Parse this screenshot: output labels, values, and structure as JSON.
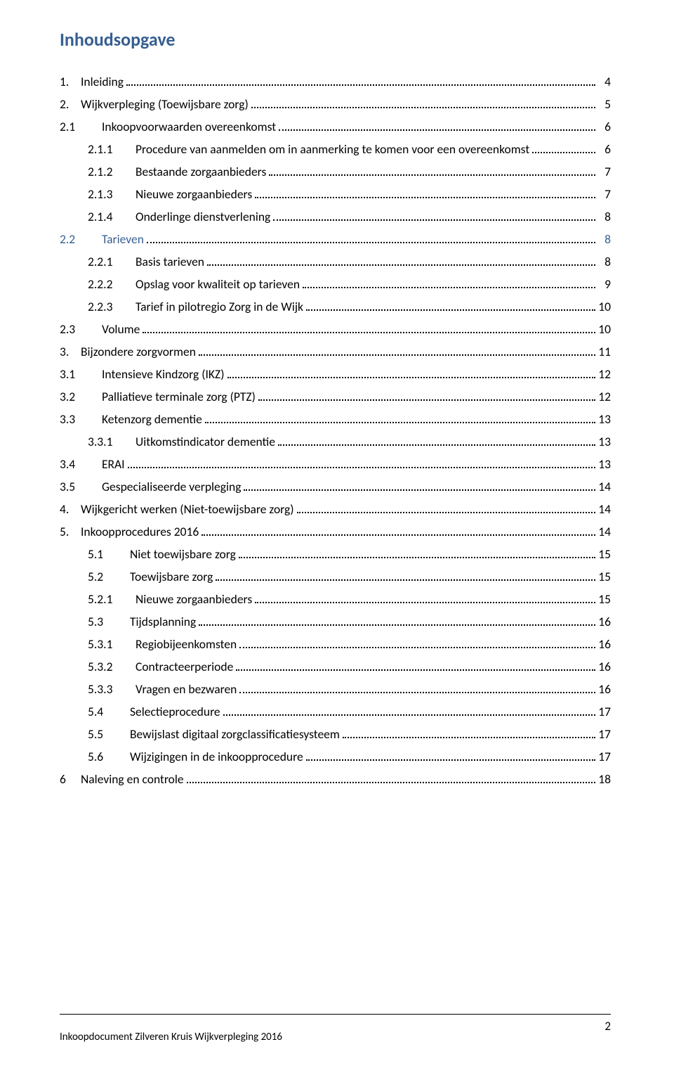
{
  "colors": {
    "heading": "#365f91",
    "text": "#000000",
    "dots": "#000000",
    "background": "#ffffff",
    "rule": "#000000"
  },
  "typography": {
    "base_family": "Calibri",
    "title_size_pt": 20,
    "body_size_pt": 13
  },
  "title": "Inhoudsopgave",
  "toc": [
    {
      "indent": "ind1",
      "num_class": "w0",
      "num": "1.",
      "text": "Inleiding",
      "page": "4",
      "blue": false
    },
    {
      "indent": "ind1",
      "num_class": "w0",
      "num": "2.",
      "text": "Wijkverpleging (Toewijsbare zorg)",
      "page": "5",
      "blue": false
    },
    {
      "indent": "ind2",
      "num_class": "w1",
      "num": "2.1",
      "text": "Inkoopvoorwaarden overeenkomst",
      "page": "6",
      "blue": false
    },
    {
      "indent": "ind3",
      "num_class": "w2",
      "num": "2.1.1",
      "text": "Procedure van aanmelden om in aanmerking te komen voor een overeenkomst",
      "page": "6",
      "blue": false
    },
    {
      "indent": "ind3",
      "num_class": "w2",
      "num": "2.1.2",
      "text": "Bestaande zorgaanbieders",
      "page": "7",
      "blue": false
    },
    {
      "indent": "ind3",
      "num_class": "w2",
      "num": "2.1.3",
      "text": "Nieuwe zorgaanbieders",
      "page": "7",
      "blue": false
    },
    {
      "indent": "ind3",
      "num_class": "w2",
      "num": "2.1.4",
      "text": "Onderlinge dienstverlening",
      "page": "8",
      "blue": false
    },
    {
      "indent": "ind2",
      "num_class": "w1",
      "num": "2.2",
      "text": "Tarieven",
      "page": "8",
      "blue": true
    },
    {
      "indent": "ind3",
      "num_class": "w2",
      "num": "2.2.1",
      "text": "Basis tarieven",
      "page": "8",
      "blue": false
    },
    {
      "indent": "ind3",
      "num_class": "w2",
      "num": "2.2.2",
      "text": "Opslag voor kwaliteit op tarieven",
      "page": "9",
      "blue": false
    },
    {
      "indent": "ind3",
      "num_class": "w2",
      "num": "2.2.3",
      "text": "Tarief in pilotregio Zorg in de Wijk",
      "page": "10",
      "blue": false
    },
    {
      "indent": "ind2",
      "num_class": "w1",
      "num": "2.3",
      "text": "Volume",
      "page": "10",
      "blue": false
    },
    {
      "indent": "ind1",
      "num_class": "w0",
      "num": "3.",
      "text": "Bijzondere zorgvormen",
      "page": "11",
      "blue": false
    },
    {
      "indent": "ind2b",
      "num_class": "w1",
      "num": "3.1",
      "text": "Intensieve Kindzorg (IKZ)",
      "page": "12",
      "blue": false
    },
    {
      "indent": "ind2b",
      "num_class": "w1",
      "num": "3.2",
      "text": "Palliatieve terminale zorg (PTZ)",
      "page": "12",
      "blue": false
    },
    {
      "indent": "ind2b",
      "num_class": "w1",
      "num": "3.3",
      "text": "Ketenzorg dementie",
      "page": "13",
      "blue": false
    },
    {
      "indent": "ind3b",
      "num_class": "w2",
      "num": "3.3.1",
      "text": "Uitkomstindicator dementie",
      "page": "13",
      "blue": false
    },
    {
      "indent": "ind2b",
      "num_class": "w1",
      "num": "3.4",
      "text": "ERAI",
      "page": "13",
      "blue": false
    },
    {
      "indent": "ind2b",
      "num_class": "w1",
      "num": "3.5",
      "text": "Gespecialiseerde verpleging",
      "page": "14",
      "blue": false
    },
    {
      "indent": "ind1",
      "num_class": "w0",
      "num": "4.",
      "text": "Wijkgericht werken (Niet-toewijsbare zorg)",
      "page": "14",
      "blue": false
    },
    {
      "indent": "ind1",
      "num_class": "w0",
      "num": "5.",
      "text": "Inkoopprocedures 2016",
      "page": "14",
      "blue": false
    },
    {
      "indent": "ind2c",
      "num_class": "w1",
      "num": "5.1",
      "text": "Niet toewijsbare zorg",
      "page": "15",
      "blue": false
    },
    {
      "indent": "ind2c",
      "num_class": "w1",
      "num": "5.2",
      "text": "Toewijsbare zorg",
      "page": "15",
      "blue": false
    },
    {
      "indent": "ind3b",
      "num_class": "w2",
      "num": "5.2.1",
      "text": "Nieuwe zorgaanbieders",
      "page": "15",
      "blue": false
    },
    {
      "indent": "ind2c",
      "num_class": "w1",
      "num": "5.3",
      "text": "Tijdsplanning",
      "page": "16",
      "blue": false
    },
    {
      "indent": "ind3b",
      "num_class": "w2",
      "num": "5.3.1",
      "text": "Regiobijeenkomsten",
      "page": "16",
      "blue": false
    },
    {
      "indent": "ind3b",
      "num_class": "w2",
      "num": "5.3.2",
      "text": "Contracteerperiode",
      "page": "16",
      "blue": false
    },
    {
      "indent": "ind3b",
      "num_class": "w2",
      "num": "5.3.3",
      "text": "Vragen en bezwaren",
      "page": "16",
      "blue": false
    },
    {
      "indent": "ind2c",
      "num_class": "w1",
      "num": "5.4",
      "text": "Selectieprocedure",
      "page": "17",
      "blue": false
    },
    {
      "indent": "ind2c",
      "num_class": "w1",
      "num": "5.5",
      "text": "Bewijslast digitaal zorgclassificatiesysteem",
      "page": "17",
      "blue": false
    },
    {
      "indent": "ind2c",
      "num_class": "w1",
      "num": "5.6",
      "text": "Wijzigingen in de inkoopprocedure",
      "page": "17",
      "blue": false
    },
    {
      "indent": "ind1",
      "num_class": "w0",
      "num": "6",
      "text": "Naleving en controle",
      "page": "18",
      "blue": false
    }
  ],
  "footer": {
    "doc_title": "Inkoopdocument Zilveren Kruis Wijkverpleging 2016",
    "page_number": "2"
  }
}
